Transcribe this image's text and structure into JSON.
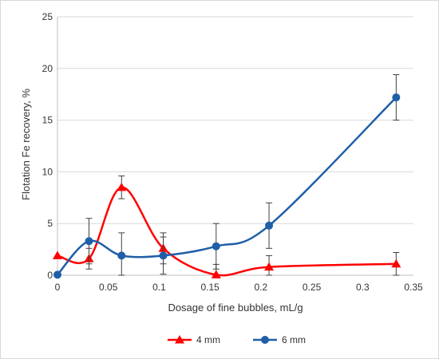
{
  "chart_data": {
    "type": "line",
    "title": "",
    "xlabel": "Dosage of fine bubbles, mL/g",
    "ylabel": "Flotation Fe recovery, %",
    "xlim": [
      0,
      0.35
    ],
    "ylim": [
      0,
      25
    ],
    "x_ticks": [
      0,
      0.05,
      0.1,
      0.15,
      0.2,
      0.25,
      0.3,
      0.35
    ],
    "y_ticks": [
      0,
      5,
      10,
      15,
      20,
      25
    ],
    "x_tick_labels": [
      "0",
      "0.05",
      "0.1",
      "0.15",
      "0.2",
      "0.25",
      "0.3",
      "0.35"
    ],
    "y_tick_labels": [
      "0",
      "5",
      "10",
      "15",
      "20",
      "25"
    ],
    "grid": "horizontal",
    "legend_position": "bottom",
    "series": [
      {
        "name": "4 mm",
        "color": "#ff0000",
        "marker": "triangle",
        "x": [
          0,
          0.031,
          0.063,
          0.104,
          0.156,
          0.208,
          0.333
        ],
        "y": [
          1.9,
          1.6,
          8.5,
          2.6,
          0.05,
          0.8,
          1.1
        ],
        "error": [
          0,
          1.0,
          1.1,
          1.5,
          1.0,
          1.1,
          1.1
        ]
      },
      {
        "name": "6 mm",
        "color": "#1f5fa8",
        "marker": "circle",
        "x": [
          0,
          0.031,
          0.063,
          0.104,
          0.156,
          0.208,
          0.333
        ],
        "y": [
          0.05,
          3.3,
          1.9,
          1.9,
          2.8,
          4.8,
          17.2
        ],
        "error": [
          0,
          2.2,
          2.2,
          1.8,
          2.2,
          2.2,
          2.2
        ]
      }
    ]
  }
}
